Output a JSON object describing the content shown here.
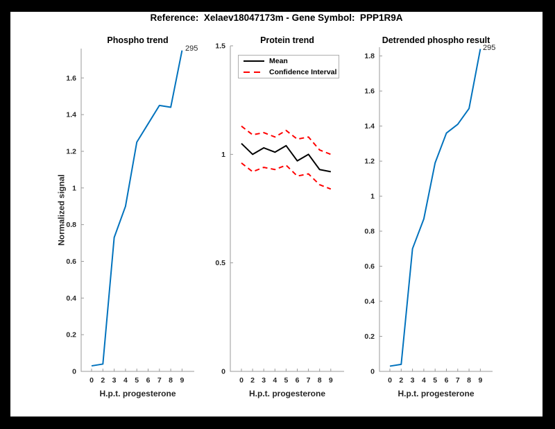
{
  "figure": {
    "title": "Reference:  Xelaev18047173m - Gene Symbol:  PPP1R9A"
  },
  "colors": {
    "line_blue": "#0072BD",
    "mean_black": "#000000",
    "ci_red": "#ff0000",
    "axis_gray": "#9a9a9a",
    "text_dark": "#262626",
    "frame_black": "#000000",
    "canvas_white": "#ffffff"
  },
  "chart_data": [
    {
      "type": "line",
      "title": "Phospho trend",
      "xlabel": "H.p.t. progesterone",
      "ylabel": "Normalized signal",
      "x_tick_labels": [
        "0",
        "2",
        "3",
        "4",
        "5",
        "6",
        "7",
        "8",
        "9"
      ],
      "y_ticks": [
        0,
        0.2,
        0.4,
        0.6,
        0.8,
        1,
        1.2,
        1.4,
        1.6
      ],
      "ylim": [
        0,
        1.76
      ],
      "grid": false,
      "end_label": "295",
      "series": [
        {
          "id": "phospho-trend-line",
          "name": "295",
          "color": "#0072BD",
          "style": "solid",
          "width": 2,
          "values": [
            0.03,
            0.04,
            0.73,
            0.9,
            1.25,
            1.35,
            1.45,
            1.44,
            1.75
          ]
        }
      ]
    },
    {
      "type": "line",
      "title": "Protein trend",
      "xlabel": "H.p.t. progesterone",
      "ylabel": "",
      "x_tick_labels": [
        "0",
        "2",
        "3",
        "4",
        "5",
        "6",
        "7",
        "8",
        "9"
      ],
      "y_ticks": [
        0,
        0.5,
        1,
        1.5
      ],
      "ylim": [
        0,
        1.5
      ],
      "grid": false,
      "legend": [
        {
          "label": "Mean"
        },
        {
          "label": "Confidence Interval"
        }
      ],
      "legend_position": "top-left-inside",
      "series": [
        {
          "id": "protein-mean-line",
          "name": "Mean",
          "color": "#000000",
          "style": "solid",
          "width": 2,
          "values": [
            1.05,
            1.0,
            1.03,
            1.01,
            1.04,
            0.97,
            1.0,
            0.93,
            0.92
          ]
        },
        {
          "id": "ci-upper-line",
          "name": "Confidence Interval",
          "color": "#ff0000",
          "style": "dashed",
          "width": 2,
          "values": [
            1.13,
            1.09,
            1.1,
            1.08,
            1.11,
            1.07,
            1.08,
            1.02,
            1.0
          ]
        },
        {
          "id": "ci-lower-line",
          "name": "Confidence Interval",
          "color": "#ff0000",
          "style": "dashed",
          "width": 2,
          "values": [
            0.96,
            0.92,
            0.94,
            0.93,
            0.95,
            0.9,
            0.91,
            0.86,
            0.84
          ]
        }
      ]
    },
    {
      "type": "line",
      "title": "Detrended phospho result",
      "xlabel": "H.p.t. progesterone",
      "ylabel": "",
      "x_tick_labels": [
        "0",
        "2",
        "3",
        "4",
        "5",
        "6",
        "7",
        "8",
        "9"
      ],
      "y_ticks": [
        0,
        0.2,
        0.4,
        0.6,
        0.8,
        1,
        1.2,
        1.4,
        1.6,
        1.8
      ],
      "ylim": [
        0,
        1.85
      ],
      "grid": false,
      "end_label": "295",
      "series": [
        {
          "id": "detrended-phospho-line",
          "name": "295",
          "color": "#0072BD",
          "style": "solid",
          "width": 2,
          "values": [
            0.03,
            0.04,
            0.7,
            0.87,
            1.19,
            1.36,
            1.41,
            1.5,
            1.84
          ]
        }
      ]
    }
  ]
}
